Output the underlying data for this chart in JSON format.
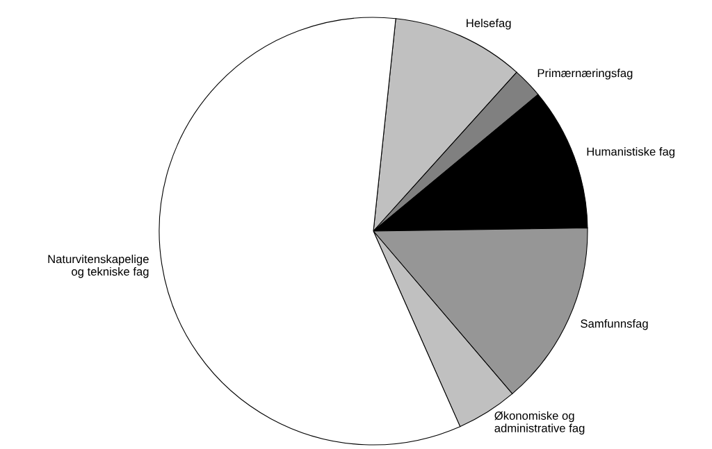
{
  "chart_data": {
    "type": "pie",
    "categories": [
      "Helsefag",
      "Primærnæringsfag",
      "Humanistiske fag",
      "Samfunnsfag",
      "Økonomiske og\nadministrative fag",
      "Naturvitenskapelige\nog tekniske fag"
    ],
    "values": [
      10.0,
      2.3,
      10.8,
      14.0,
      4.6,
      58.3
    ],
    "colors": [
      "#c0c0c0",
      "#808080",
      "#000000",
      "#969696",
      "#c0c0c0",
      "#ffffff"
    ]
  }
}
